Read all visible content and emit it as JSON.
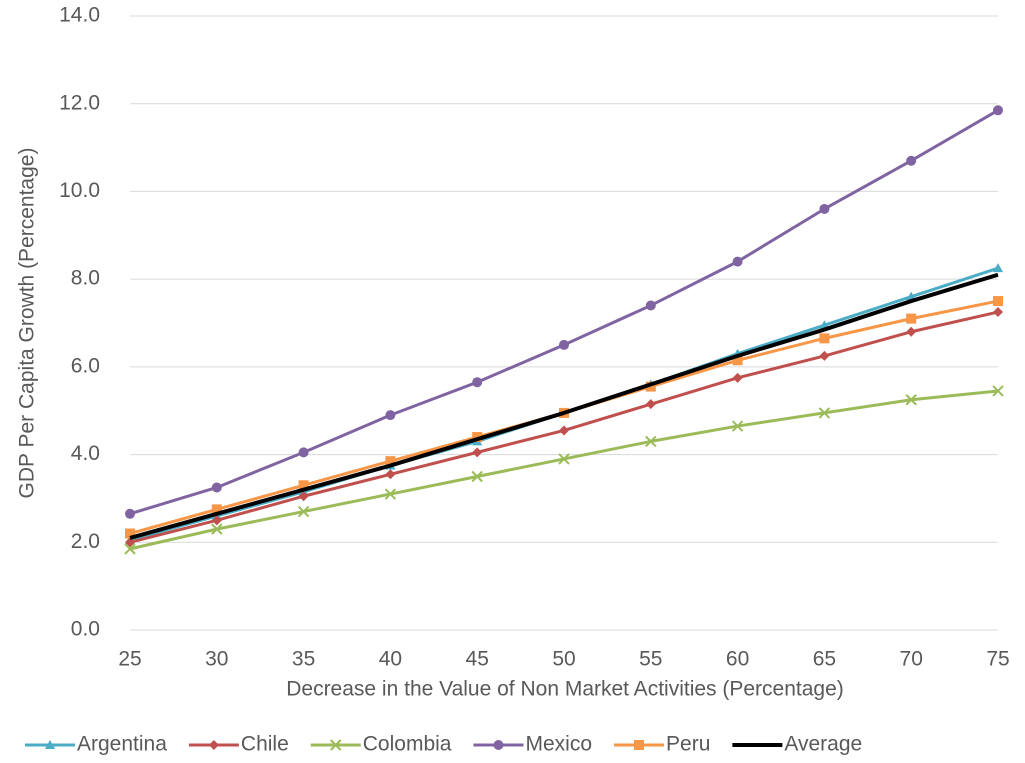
{
  "chart_data": {
    "type": "line",
    "x_label": "Decrease in the Value of Non Market Activities (Percentage)",
    "y_label": "GDP Per Capita Growth (Percentage)",
    "x": [
      25,
      30,
      35,
      40,
      45,
      50,
      55,
      60,
      65,
      70,
      75
    ],
    "series": [
      {
        "name": "Argentina",
        "color": "#4bacc6",
        "marker": "triangle",
        "values": [
          2.05,
          2.6,
          3.15,
          3.75,
          4.3,
          4.95,
          5.6,
          6.3,
          6.95,
          7.6,
          8.25
        ]
      },
      {
        "name": "Chile",
        "color": "#c0504d",
        "marker": "diamond",
        "values": [
          2.0,
          2.5,
          3.05,
          3.55,
          4.05,
          4.55,
          5.15,
          5.75,
          6.25,
          6.8,
          7.25
        ]
      },
      {
        "name": "Colombia",
        "color": "#9bbb59",
        "marker": "x",
        "values": [
          1.85,
          2.3,
          2.7,
          3.1,
          3.5,
          3.9,
          4.3,
          4.65,
          4.95,
          5.25,
          5.45
        ]
      },
      {
        "name": "Mexico",
        "color": "#8064a2",
        "marker": "circle",
        "values": [
          2.65,
          3.25,
          4.05,
          4.9,
          5.65,
          6.5,
          7.4,
          8.4,
          9.6,
          10.7,
          11.85
        ]
      },
      {
        "name": "Peru",
        "color": "#f79646",
        "marker": "square",
        "values": [
          2.2,
          2.75,
          3.3,
          3.85,
          4.4,
          4.95,
          5.55,
          6.15,
          6.65,
          7.1,
          7.5
        ]
      },
      {
        "name": "Average",
        "color": "#000000",
        "marker": "none",
        "values": [
          2.1,
          2.65,
          3.2,
          3.75,
          4.35,
          4.95,
          5.6,
          6.25,
          6.85,
          7.5,
          8.1
        ]
      }
    ],
    "xlim": [
      25,
      75
    ],
    "xticks": [
      25,
      30,
      35,
      40,
      45,
      50,
      55,
      60,
      65,
      70,
      75
    ],
    "ylim": [
      0,
      14
    ],
    "yticks": [
      {
        "value": 0,
        "label": "0.0"
      },
      {
        "value": 2,
        "label": "2.0"
      },
      {
        "value": 4,
        "label": "4.0"
      },
      {
        "value": 6,
        "label": "6.0"
      },
      {
        "value": 8,
        "label": "8.0"
      },
      {
        "value": 10,
        "label": "10.0"
      },
      {
        "value": 12,
        "label": "12.0"
      },
      {
        "value": 14,
        "label": "14.0"
      }
    ],
    "grid": true,
    "legend": "bottom"
  }
}
